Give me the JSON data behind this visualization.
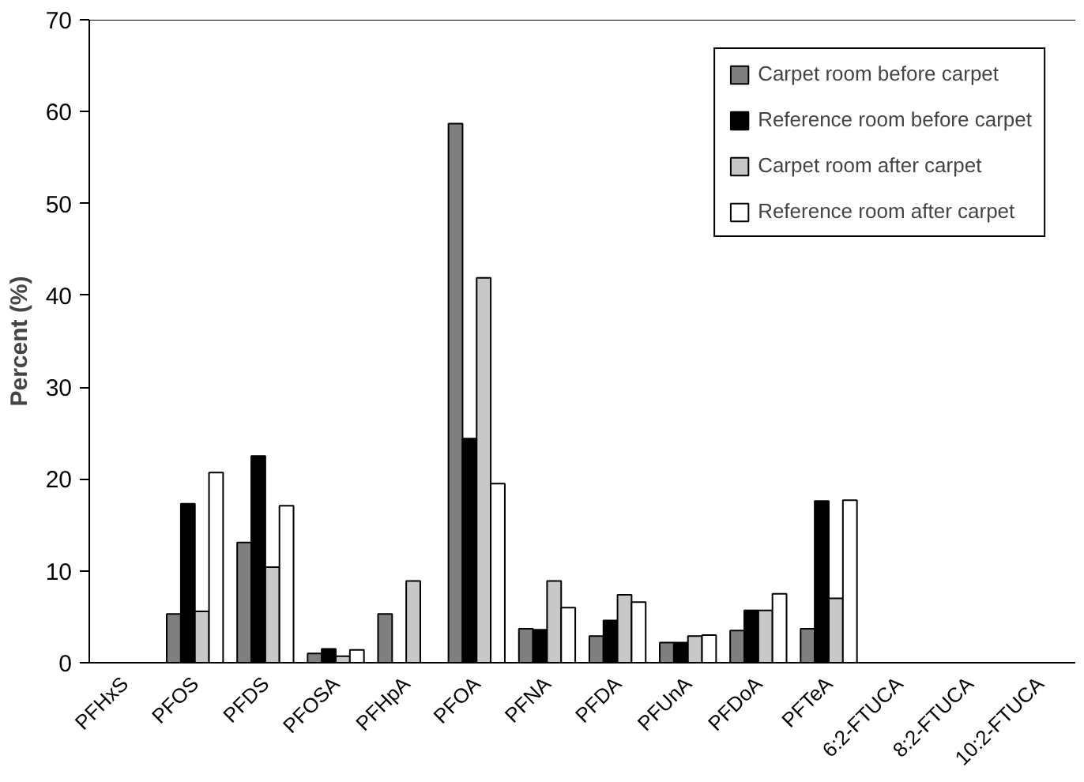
{
  "chart_data": {
    "type": "bar",
    "ylabel": "Percent (%)",
    "categories": [
      "PFHxS",
      "PFOS",
      "PFDS",
      "PFOSA",
      "PFHpA",
      "PFOA",
      "PFNA",
      "PFDA",
      "PFUnA",
      "PFDoA",
      "PFTeA",
      "6:2-FTUCA",
      "8:2-FTUCA",
      "10:2-FTUCA"
    ],
    "series": [
      {
        "name": "Carpet room before carpet",
        "color": "#7f7f7f",
        "values": [
          null,
          5.3,
          13.1,
          1.0,
          5.3,
          58.7,
          3.7,
          2.9,
          2.2,
          3.5,
          3.7,
          null,
          null,
          null
        ]
      },
      {
        "name": "Reference room before carpet",
        "color": "#000000",
        "values": [
          null,
          17.3,
          22.5,
          1.5,
          null,
          24.4,
          3.6,
          4.6,
          2.2,
          5.7,
          17.6,
          null,
          null,
          null
        ]
      },
      {
        "name": "Carpet room after carpet",
        "color": "#c8c8c8",
        "values": [
          null,
          5.6,
          10.4,
          0.7,
          8.9,
          41.9,
          8.9,
          7.4,
          2.9,
          5.7,
          7.0,
          null,
          null,
          null
        ]
      },
      {
        "name": "Reference room after carpet",
        "color": "#ffffff",
        "values": [
          null,
          20.7,
          17.1,
          1.4,
          null,
          19.5,
          6.0,
          6.6,
          3.0,
          7.5,
          17.7,
          null,
          null,
          null
        ]
      }
    ],
    "ylim": [
      0,
      70
    ],
    "yticks": [
      0,
      10,
      20,
      30,
      40,
      50,
      60,
      70
    ],
    "grid": false,
    "legend": "top right"
  }
}
